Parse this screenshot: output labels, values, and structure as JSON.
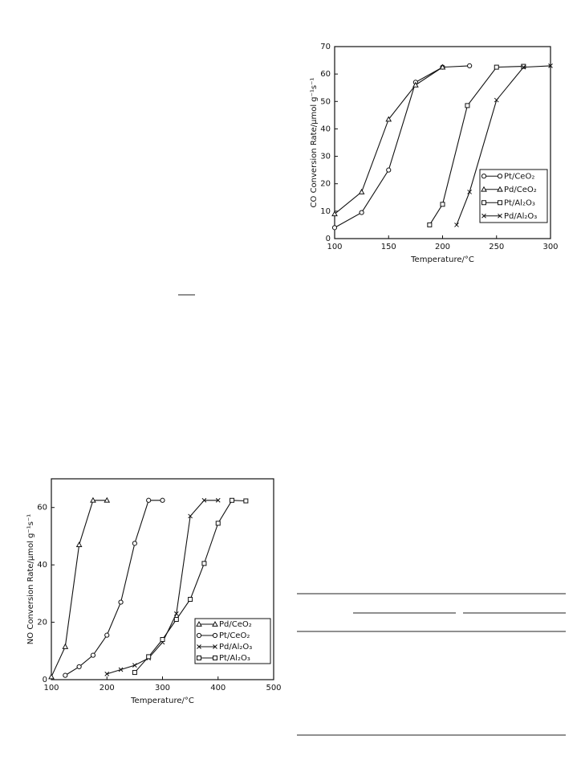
{
  "chart_data": [
    {
      "type": "line",
      "y_label": "CO Conversion Rate/μmol g⁻¹s⁻¹",
      "x_label": "Temperature/°C",
      "xlim": [
        100,
        300
      ],
      "xticks": [
        100,
        150,
        200,
        250,
        300
      ],
      "ylim": [
        0,
        70
      ],
      "yticks": [
        0,
        10,
        20,
        30,
        40,
        50,
        60,
        70
      ],
      "legend": "lower right",
      "grid": false,
      "series": [
        {
          "name": "Pt/CeO₂",
          "marker": "circle",
          "color": "#111111",
          "x": [
            100,
            125,
            150,
            175,
            200,
            225
          ],
          "values": [
            4,
            9.5,
            25,
            57,
            62.5,
            63
          ]
        },
        {
          "name": "Pd/CeO₂",
          "marker": "triangle",
          "color": "#111111",
          "x": [
            100,
            125,
            150,
            175,
            200
          ],
          "values": [
            9,
            17,
            43.5,
            56,
            62.5
          ]
        },
        {
          "name": "Pt/Al₂O₃",
          "marker": "square",
          "color": "#111111",
          "x": [
            188,
            200,
            223,
            250,
            275
          ],
          "values": [
            5,
            12.5,
            48.5,
            62.5,
            62.8
          ]
        },
        {
          "name": "Pd/Al₂O₃",
          "marker": "x",
          "color": "#111111",
          "x": [
            213,
            225,
            250,
            275,
            300
          ],
          "values": [
            5,
            17,
            50.5,
            62.5,
            63
          ]
        }
      ]
    },
    {
      "type": "line",
      "y_label": "NO Conversion Rate/μmol g⁻¹s⁻¹",
      "x_label": "Temperature/°C",
      "xlim": [
        100,
        500
      ],
      "xticks": [
        100,
        200,
        300,
        400,
        500
      ],
      "ylim": [
        0,
        70
      ],
      "yticks": [
        0,
        20,
        40,
        60
      ],
      "legend": "lower right",
      "grid": false,
      "series": [
        {
          "name": "Pd/CeO₂",
          "marker": "triangle",
          "color": "#111111",
          "x": [
            100,
            125,
            150,
            175,
            200
          ],
          "values": [
            1,
            11.5,
            47,
            62.5,
            62.5
          ]
        },
        {
          "name": "Pt/CeO₂",
          "marker": "circle",
          "color": "#111111",
          "x": [
            125,
            150,
            175,
            200,
            225,
            250,
            275,
            300
          ],
          "values": [
            1.5,
            4.5,
            8.5,
            15.5,
            27,
            47.5,
            62.5,
            62.5
          ]
        },
        {
          "name": "Pd/Al₂O₃",
          "marker": "x",
          "color": "#111111",
          "x": [
            200,
            225,
            250,
            275,
            300,
            325,
            350,
            375,
            400
          ],
          "values": [
            2,
            3.5,
            5,
            7.5,
            13,
            23,
            57,
            62.5,
            62.5
          ]
        },
        {
          "name": "Pt/Al₂O₃",
          "marker": "square",
          "color": "#111111",
          "x": [
            250,
            275,
            300,
            325,
            350,
            375,
            400,
            425,
            450
          ],
          "values": [
            2.5,
            8,
            14,
            21,
            28,
            40.5,
            54.5,
            62.5,
            62.3
          ]
        }
      ]
    }
  ]
}
